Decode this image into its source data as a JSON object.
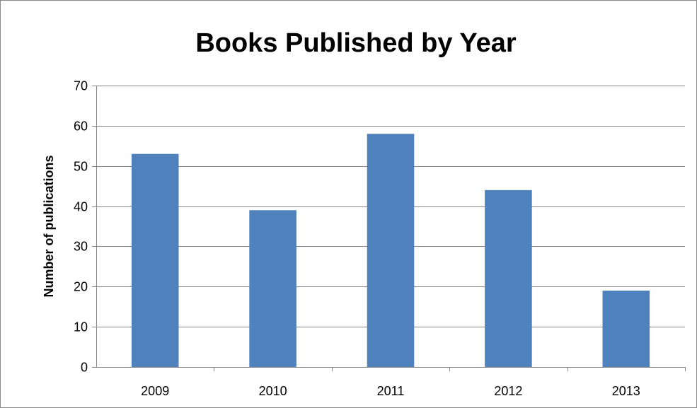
{
  "chart_data": {
    "type": "bar",
    "title": "Books Published by Year",
    "xlabel": "",
    "ylabel": "Number of publications",
    "categories": [
      "2009",
      "2010",
      "2011",
      "2012",
      "2013"
    ],
    "series": [
      {
        "values": [
          53,
          39,
          58,
          44,
          19
        ]
      }
    ],
    "ylim": [
      0,
      70
    ],
    "yticks": [
      0,
      10,
      20,
      30,
      40,
      50,
      60,
      70
    ],
    "grid": true,
    "legend": "none",
    "colors": {
      "bar": "#4f81bd",
      "grid": "#868686"
    }
  }
}
